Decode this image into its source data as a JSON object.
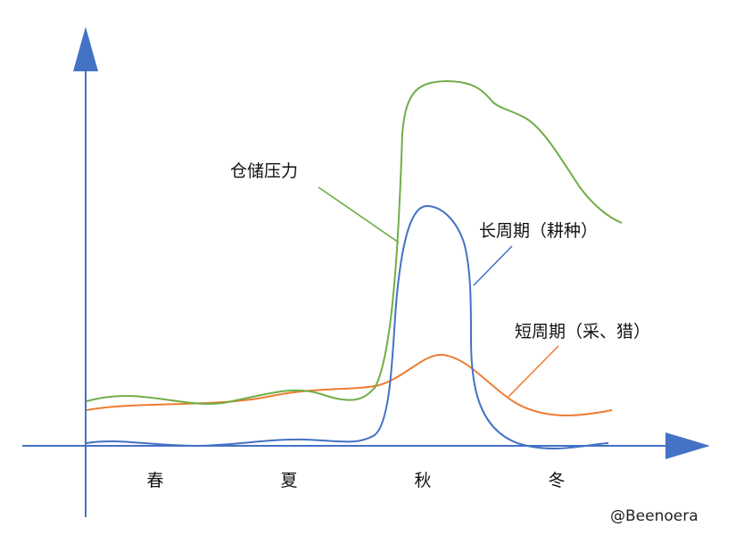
{
  "diagram": {
    "axis_color": "#4472C4",
    "seasons": [
      "春",
      "夏",
      "秋",
      "冬"
    ],
    "curves": {
      "storage_pressure": {
        "label": "仓储压力",
        "color": "#70AD47"
      },
      "long_cycle": {
        "label": "长周期（耕种）",
        "color": "#4472C4"
      },
      "short_cycle": {
        "label": "短周期（采、猎）",
        "color": "#ED7D31"
      }
    },
    "watermark": "@Beenoera"
  }
}
